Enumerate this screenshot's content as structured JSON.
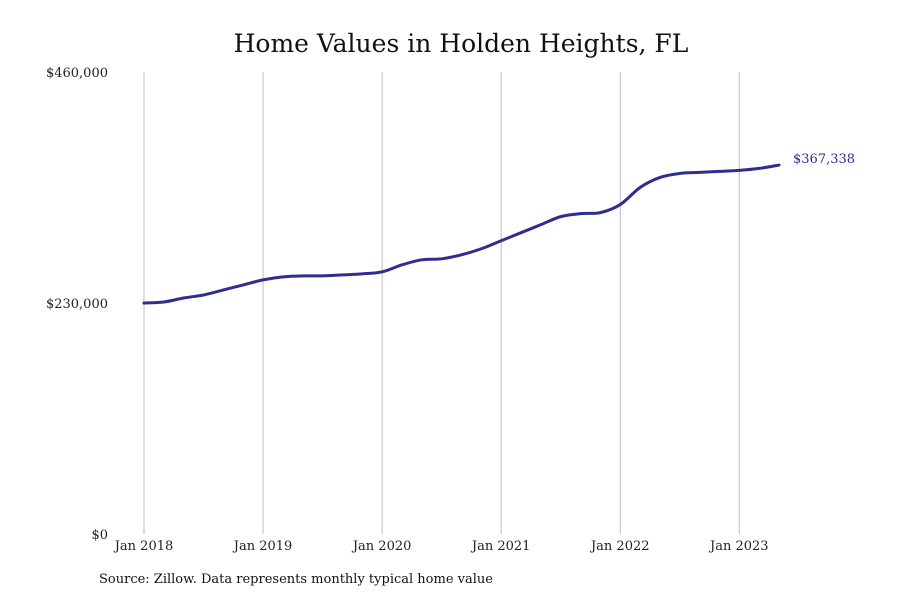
{
  "chart_data": {
    "type": "line",
    "title": "Home Values in Holden Heights, FL",
    "xlabel": "",
    "ylabel": "",
    "ylim": [
      0,
      460000
    ],
    "x_range": [
      "2018-01",
      "2023-05"
    ],
    "y_tick_values": [
      0,
      230000,
      460000
    ],
    "y_tick_labels": [
      "$0",
      "$230,000",
      "$460,000"
    ],
    "x_tick_dates": [
      "2018-01",
      "2019-01",
      "2020-01",
      "2021-01",
      "2022-01",
      "2023-01"
    ],
    "x_tick_labels": [
      "Jan 2018",
      "Jan 2019",
      "Jan 2020",
      "Jan 2021",
      "Jan 2022",
      "Jan 2023"
    ],
    "grid": "vertical",
    "legend": "none",
    "end_label": "$367,338",
    "series": [
      {
        "color": "#2e2e8f",
        "points": [
          [
            "2018-01",
            230000
          ],
          [
            "2018-03",
            231000
          ],
          [
            "2018-05",
            235000
          ],
          [
            "2018-07",
            238000
          ],
          [
            "2018-09",
            243000
          ],
          [
            "2018-11",
            248000
          ],
          [
            "2019-01",
            253000
          ],
          [
            "2019-03",
            256000
          ],
          [
            "2019-05",
            257000
          ],
          [
            "2019-07",
            257000
          ],
          [
            "2019-09",
            258000
          ],
          [
            "2019-11",
            259000
          ],
          [
            "2020-01",
            261000
          ],
          [
            "2020-03",
            268000
          ],
          [
            "2020-05",
            273000
          ],
          [
            "2020-07",
            274000
          ],
          [
            "2020-09",
            278000
          ],
          [
            "2020-11",
            284000
          ],
          [
            "2021-01",
            292000
          ],
          [
            "2021-03",
            300000
          ],
          [
            "2021-05",
            308000
          ],
          [
            "2021-07",
            316000
          ],
          [
            "2021-09",
            319000
          ],
          [
            "2021-11",
            320000
          ],
          [
            "2022-01",
            328000
          ],
          [
            "2022-03",
            345000
          ],
          [
            "2022-05",
            355000
          ],
          [
            "2022-07",
            359000
          ],
          [
            "2022-09",
            360000
          ],
          [
            "2022-11",
            361000
          ],
          [
            "2023-01",
            362000
          ],
          [
            "2023-03",
            364000
          ],
          [
            "2023-05",
            367338
          ]
        ]
      }
    ]
  },
  "source_note": "Source: Zillow. Data represents monthly typical home value"
}
